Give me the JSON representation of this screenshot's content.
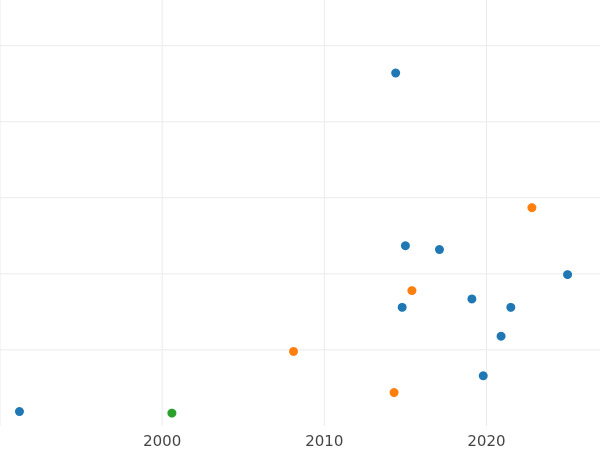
{
  "chart_data": {
    "type": "scatter",
    "title": "",
    "xlabel": "",
    "ylabel": "",
    "xlim": [
      1990,
      2027
    ],
    "ylim": [
      0,
      5.6
    ],
    "x_ticks": [
      1990,
      2000,
      2010,
      2020
    ],
    "x_tick_labels": [
      "",
      "2000",
      "2010",
      "2020"
    ],
    "y_ticks": [
      1,
      2,
      3,
      4,
      5
    ],
    "grid": true,
    "legend": "none",
    "colors": {
      "blue": "#1f77b4",
      "orange": "#ff7f0e",
      "green": "#2ca02c"
    },
    "series": [
      {
        "color": "blue",
        "points": [
          {
            "x": 1991.2,
            "y": 0.19
          },
          {
            "x": 2014.4,
            "y": 4.64
          },
          {
            "x": 2015.0,
            "y": 2.37
          },
          {
            "x": 2017.1,
            "y": 2.32
          },
          {
            "x": 2025.0,
            "y": 1.99
          },
          {
            "x": 2019.1,
            "y": 1.67
          },
          {
            "x": 2021.5,
            "y": 1.56
          },
          {
            "x": 2014.8,
            "y": 1.56
          },
          {
            "x": 2020.9,
            "y": 1.18
          },
          {
            "x": 2019.8,
            "y": 0.66
          }
        ]
      },
      {
        "color": "orange",
        "points": [
          {
            "x": 2022.8,
            "y": 2.87
          },
          {
            "x": 2015.4,
            "y": 1.78
          },
          {
            "x": 2008.1,
            "y": 0.98
          },
          {
            "x": 2014.3,
            "y": 0.44
          }
        ]
      },
      {
        "color": "green",
        "points": [
          {
            "x": 2000.6,
            "y": 0.17
          }
        ]
      }
    ]
  }
}
